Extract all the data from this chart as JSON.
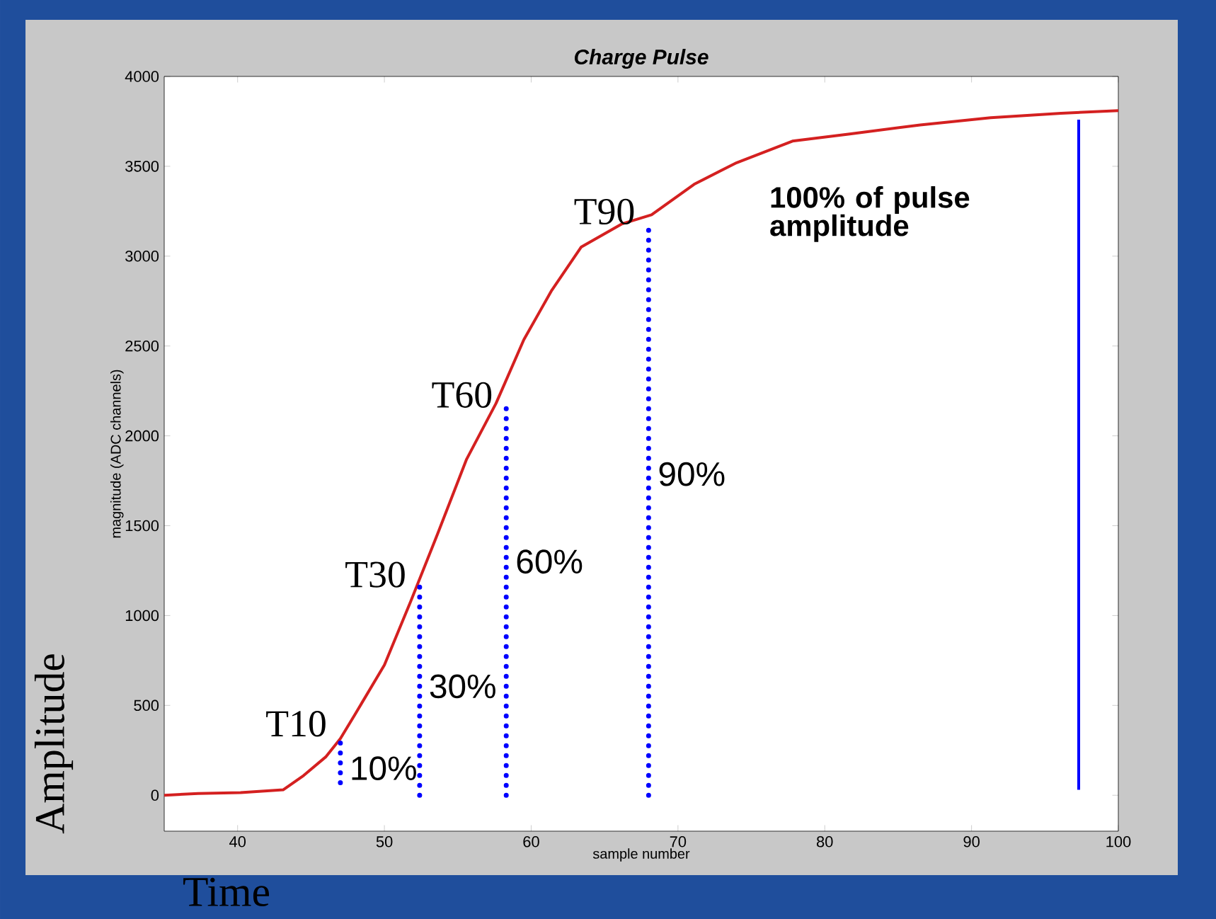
{
  "chart_data": {
    "type": "line",
    "title": "Charge Pulse",
    "xlabel": "sample number",
    "ylabel": "magnitude (ADC channels)",
    "xlim": [
      35,
      100
    ],
    "ylim": [
      -200,
      4000
    ],
    "xticks": [
      40,
      50,
      60,
      70,
      80,
      90,
      100
    ],
    "yticks": [
      0,
      500,
      1000,
      1500,
      2000,
      2500,
      3000,
      3500,
      4000
    ],
    "marker": "none",
    "series": [
      {
        "color": "#d42020",
        "line_style": "solid",
        "x": [
          35,
          37.3,
          40.2,
          43.1,
          44.5,
          46,
          47,
          48,
          50,
          51.8,
          53.7,
          55.6,
          57.6,
          59.5,
          61.4,
          63.4,
          66.2,
          68.2,
          71.1,
          74,
          77.8,
          81.7,
          86.5,
          91.3,
          96.1,
          100
        ],
        "values": [
          0,
          10,
          15,
          30,
          110,
          213,
          315,
          450,
          725,
          1080,
          1470,
          1870,
          2180,
          2535,
          2810,
          3050,
          3180,
          3230,
          3400,
          3520,
          3640,
          3680,
          3730,
          3770,
          3795,
          3810
        ]
      },
      {
        "color": "#0000ff",
        "line_style": "dotted",
        "x": [
          47,
          47
        ],
        "values": [
          70,
          330
        ]
      },
      {
        "color": "#0000ff",
        "line_style": "dotted",
        "x": [
          52.4,
          52.4
        ],
        "values": [
          0,
          1160
        ]
      },
      {
        "color": "#0000ff",
        "line_style": "dotted",
        "x": [
          58.3,
          58.3
        ],
        "values": [
          0,
          2160
        ]
      },
      {
        "color": "#0000ff",
        "line_style": "dotted",
        "x": [
          68,
          68
        ],
        "values": [
          0,
          3180
        ]
      },
      {
        "color": "#0000ff",
        "line_style": "solid",
        "x": [
          97.3,
          97.3
        ],
        "values": [
          30,
          3760
        ]
      }
    ],
    "annotations": [
      {
        "text": "T10",
        "x": 47,
        "y": 330
      },
      {
        "text": "10%",
        "x": 47,
        "y": 150
      },
      {
        "text": "T30",
        "x": 52.4,
        "y": 1160
      },
      {
        "text": "30%",
        "x": 52.4,
        "y": 606
      },
      {
        "text": "T60",
        "x": 58.3,
        "y": 2160
      },
      {
        "text": "60%",
        "x": 58.3,
        "y": 1300
      },
      {
        "text": "T90",
        "x": 68,
        "y": 3180
      },
      {
        "text": "90%",
        "x": 68,
        "y": 1787
      },
      "100% of pulse amplitude",
      "Amplitude",
      "Time"
    ]
  }
}
